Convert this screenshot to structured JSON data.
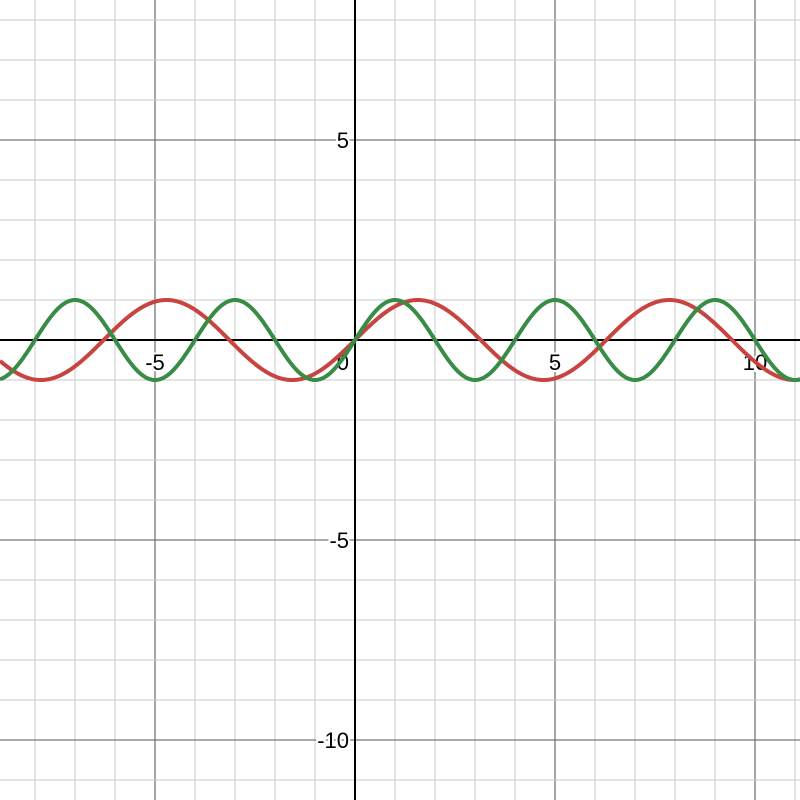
{
  "chart_data": {
    "type": "line",
    "xlim": [
      -8.875,
      11.125
    ],
    "ylim": [
      -11.5,
      8.5
    ],
    "grid": true,
    "minor_grid_step": 1,
    "major_grid_step": 5,
    "x_tick_labels": [
      {
        "value": -5,
        "label": "-5"
      },
      {
        "value": 5,
        "label": "5"
      },
      {
        "value": 10,
        "label": "10"
      }
    ],
    "y_tick_labels": [
      {
        "value": 5,
        "label": "5"
      },
      {
        "value": -5,
        "label": "-5"
      },
      {
        "value": -10,
        "label": "-10"
      }
    ],
    "origin_label": "0",
    "series": [
      {
        "expression": "sin(x)",
        "color": "#c74440",
        "amplitude": 1,
        "period": 6.2832
      },
      {
        "expression": "sin(pi*x/2)",
        "color": "#388c46",
        "amplitude": 1,
        "period": 4
      }
    ]
  }
}
